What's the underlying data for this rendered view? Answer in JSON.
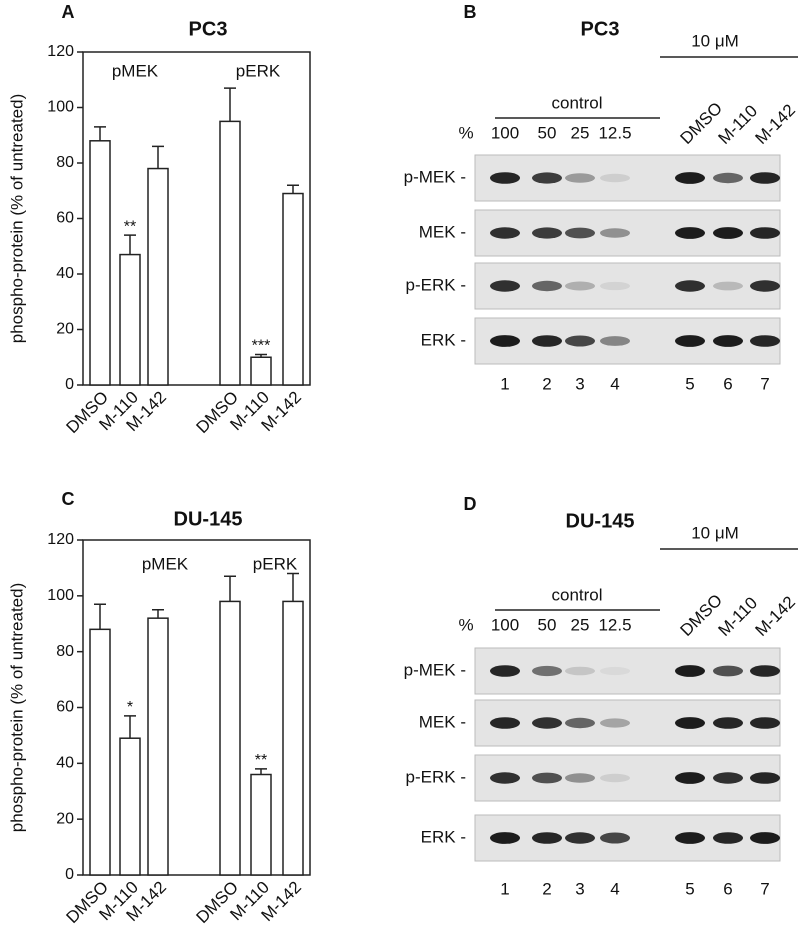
{
  "chart_data": [
    {
      "type": "bar",
      "panel_label": "A",
      "title": "PC3",
      "y_label": "phospho-protein (% of untreated)",
      "group_labels": [
        "pMEK",
        "pERK"
      ],
      "categories": [
        "DMSO",
        "M-110",
        "M-142",
        "DMSO",
        "M-110",
        "M-142"
      ],
      "values": [
        88,
        47,
        78,
        95,
        10,
        69
      ],
      "errors": [
        5,
        7,
        8,
        12,
        1,
        3
      ],
      "significance": [
        null,
        "**",
        null,
        null,
        "***",
        null
      ],
      "color": "#ffffff",
      "ylim": [
        0,
        120
      ],
      "yticks": [
        0,
        20,
        40,
        60,
        80,
        100,
        120
      ]
    },
    {
      "type": "bar",
      "panel_label": "C",
      "title": "DU-145",
      "y_label": "phospho-protein (% of untreated)",
      "group_labels": [
        "pMEK",
        "pERK"
      ],
      "categories": [
        "DMSO",
        "M-110",
        "M-142",
        "DMSO",
        "M-110",
        "M-142"
      ],
      "values": [
        88,
        49,
        92,
        98,
        36,
        98
      ],
      "errors": [
        9,
        8,
        3,
        9,
        2,
        10
      ],
      "significance": [
        null,
        "*",
        null,
        null,
        "**",
        null
      ],
      "color": "#ffffff",
      "ylim": [
        0,
        120
      ],
      "yticks": [
        0,
        20,
        40,
        60,
        80,
        100,
        120
      ]
    }
  ],
  "blots": [
    {
      "panel_label": "B",
      "title": "PC3",
      "treatment_label": "10 μM",
      "control_label": "control",
      "percent_label": "%",
      "lanes": [
        "100",
        "50",
        "25",
        "12.5",
        "DMSO",
        "M-110",
        "M-142"
      ],
      "rows": [
        "p-MEK -",
        "MEK -",
        "p-ERK -",
        "ERK -"
      ],
      "lane_numbers": [
        1,
        2,
        3,
        4,
        5,
        6,
        7
      ]
    },
    {
      "panel_label": "D",
      "title": "DU-145",
      "treatment_label": "10 μM",
      "control_label": "control",
      "percent_label": "%",
      "lanes": [
        "100",
        "50",
        "25",
        "12.5",
        "DMSO",
        "M-110",
        "M-142"
      ],
      "rows": [
        "p-MEK -",
        "MEK -",
        "p-ERK -",
        "ERK -"
      ],
      "lane_numbers": [
        1,
        2,
        3,
        4,
        5,
        6,
        7
      ]
    }
  ]
}
